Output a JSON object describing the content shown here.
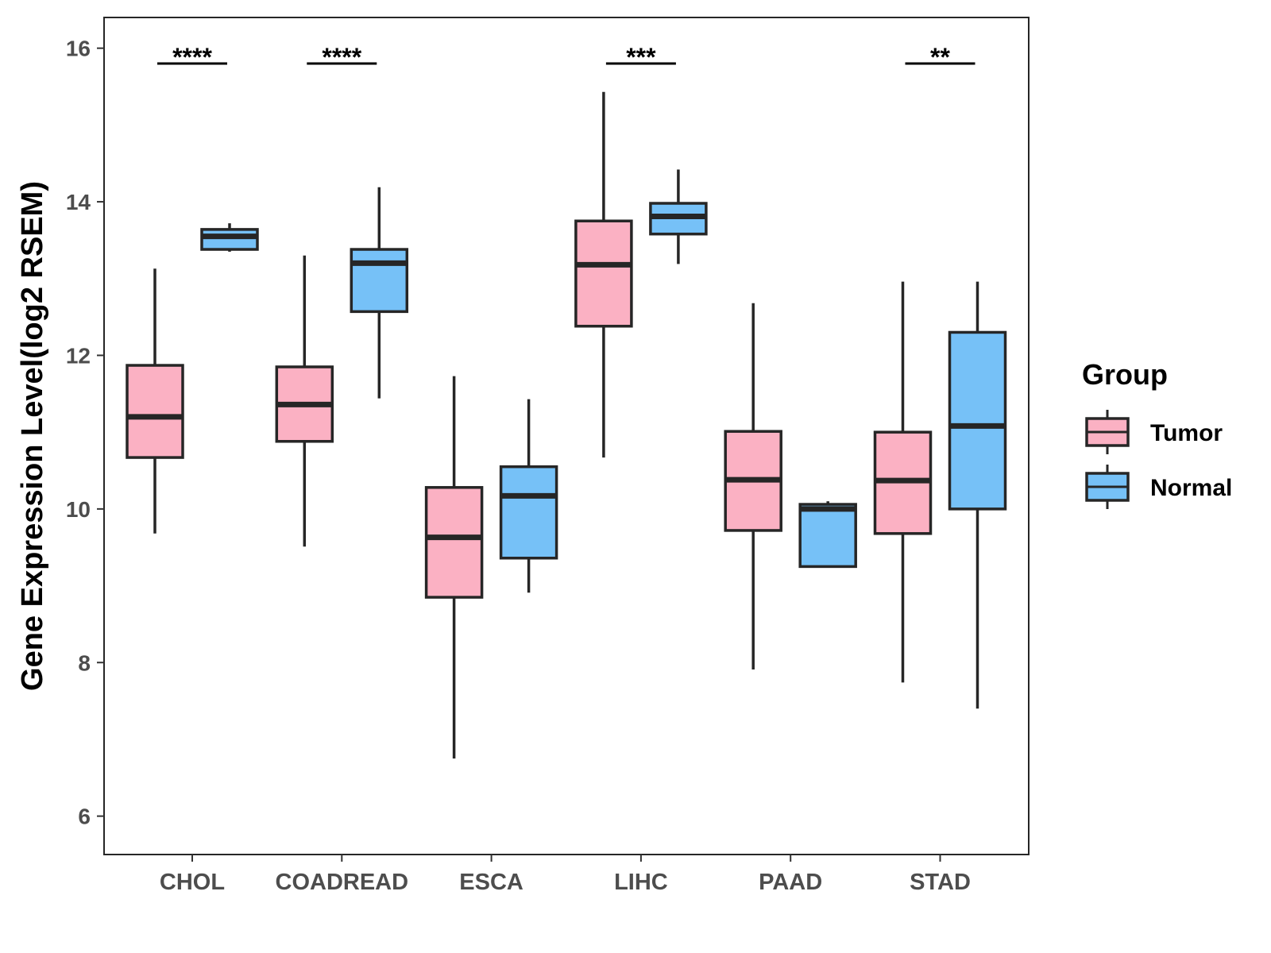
{
  "chart_data": {
    "type": "boxplot",
    "title": "",
    "xlabel": "",
    "ylabel": "Gene Expression Level(log2 RSEM)",
    "ylim": [
      5.5,
      16.4
    ],
    "yticks": [
      6,
      8,
      10,
      12,
      14,
      16
    ],
    "grid": false,
    "categories": [
      "CHOL",
      "COADREAD",
      "ESCA",
      "LIHC",
      "PAAD",
      "STAD"
    ],
    "legend": {
      "title": "Group",
      "position": "right"
    },
    "series": [
      {
        "name": "Tumor",
        "color": "#FBB1C3",
        "boxes": [
          {
            "min": 9.68,
            "q1": 10.67,
            "median": 11.2,
            "q3": 11.87,
            "max": 13.13
          },
          {
            "min": 9.51,
            "q1": 10.88,
            "median": 11.36,
            "q3": 11.85,
            "max": 13.3
          },
          {
            "min": 6.75,
            "q1": 8.85,
            "median": 9.63,
            "q3": 10.28,
            "max": 11.73
          },
          {
            "min": 10.67,
            "q1": 12.38,
            "median": 13.18,
            "q3": 13.75,
            "max": 15.43
          },
          {
            "min": 7.91,
            "q1": 9.72,
            "median": 10.38,
            "q3": 11.01,
            "max": 12.68
          },
          {
            "min": 7.74,
            "q1": 9.68,
            "median": 10.37,
            "q3": 11.0,
            "max": 12.96
          }
        ]
      },
      {
        "name": "Normal",
        "color": "#76C1F7",
        "boxes": [
          {
            "min": 13.35,
            "q1": 13.38,
            "median": 13.55,
            "q3": 13.64,
            "max": 13.72
          },
          {
            "min": 11.44,
            "q1": 12.57,
            "median": 13.2,
            "q3": 13.38,
            "max": 14.19
          },
          {
            "min": 8.91,
            "q1": 9.36,
            "median": 10.17,
            "q3": 10.55,
            "max": 11.43
          },
          {
            "min": 13.19,
            "q1": 13.58,
            "median": 13.81,
            "q3": 13.98,
            "max": 14.42
          },
          {
            "min": 9.25,
            "q1": 9.25,
            "median": 10.0,
            "q3": 10.06,
            "max": 10.1
          },
          {
            "min": 7.4,
            "q1": 10.0,
            "median": 11.08,
            "q3": 12.3,
            "max": 12.96
          }
        ]
      }
    ],
    "significance": [
      {
        "category": "CHOL",
        "label": "****"
      },
      {
        "category": "COADREAD",
        "label": "****"
      },
      {
        "category": "LIHC",
        "label": "***"
      },
      {
        "category": "STAD",
        "label": "**"
      }
    ]
  }
}
